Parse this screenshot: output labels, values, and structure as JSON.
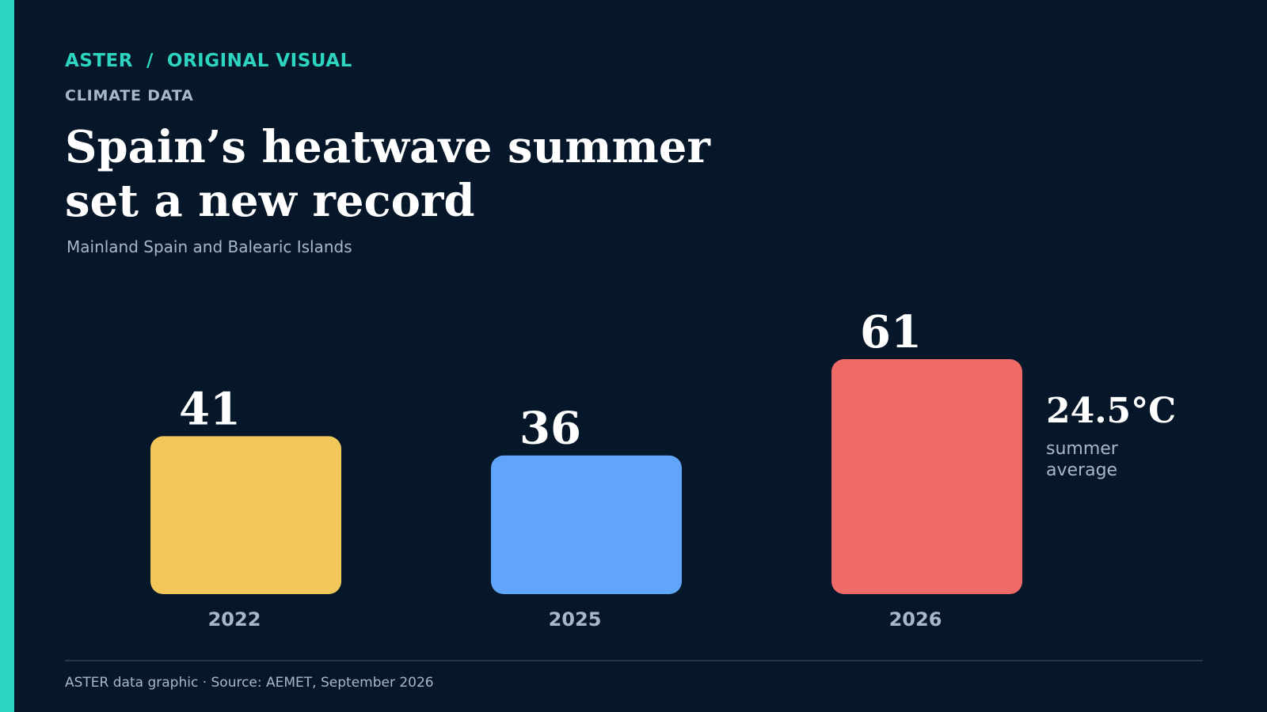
{
  "header": {
    "kicker": "ASTER  /  ORIGINAL VISUAL",
    "category": "CLIMATE DATA",
    "title": "Spain’s heatwave summer set a new record",
    "subtitle": "Mainland Spain and Balearic Islands"
  },
  "chart_data": {
    "type": "bar",
    "categories": [
      "2022",
      "2025",
      "2026"
    ],
    "values": [
      41,
      36,
      61
    ],
    "colors": [
      "#f2c85b",
      "#60a5fa",
      "#f06b68"
    ],
    "annotation": {
      "category": "2026",
      "value": "24.5°C",
      "label_line1": "summer",
      "label_line2": "average"
    },
    "grid": false,
    "ylim": [
      0,
      61
    ]
  },
  "footer": {
    "source": "ASTER data graphic · Source: AEMET, September 2026"
  },
  "theme": {
    "background": "#06172a",
    "accent": "#2dd4bf",
    "muted_text": "#a9b8c9"
  }
}
